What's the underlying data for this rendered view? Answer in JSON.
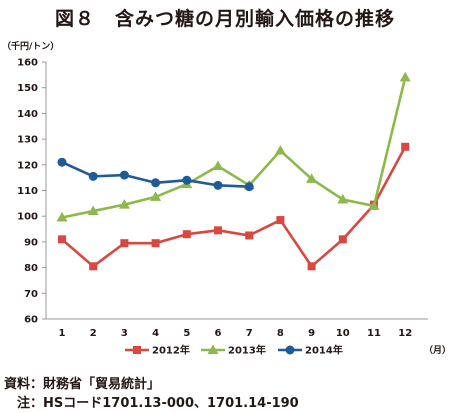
{
  "title": "図８　含みつ糖の月別輸入価格の推移",
  "source": "資料：財務省「貿易統計」",
  "note": "　注：HSコード1701.13-000、1701.14-190",
  "chart_data": {
    "type": "line",
    "title": "図８　含みつ糖の月別輸入価格の推移",
    "ylabel": "（千円/トン）",
    "xlabel": "（月）",
    "categories": [
      "1",
      "2",
      "3",
      "4",
      "5",
      "6",
      "7",
      "8",
      "9",
      "10",
      "11",
      "12"
    ],
    "ylim": [
      60,
      160
    ],
    "yticks": [
      60,
      70,
      80,
      90,
      100,
      110,
      120,
      130,
      140,
      150,
      160
    ],
    "grid": false,
    "legend_position": "bottom",
    "series": [
      {
        "name": "2012年",
        "color": "#d9473f",
        "marker": "square",
        "values": [
          91,
          80.5,
          89.5,
          89.5,
          93,
          94.5,
          92.5,
          98.5,
          80.5,
          91,
          104.5,
          127
        ]
      },
      {
        "name": "2013年",
        "color": "#8db84a",
        "marker": "triangle",
        "values": [
          99.5,
          102,
          104.5,
          107.5,
          112.5,
          119.5,
          112,
          125.5,
          114.5,
          106.5,
          104,
          154
        ]
      },
      {
        "name": "2014年",
        "color": "#1f5a99",
        "marker": "circle",
        "values": [
          121,
          115.5,
          116,
          113,
          114,
          112,
          111.5,
          null,
          null,
          null,
          null,
          null
        ]
      }
    ]
  }
}
